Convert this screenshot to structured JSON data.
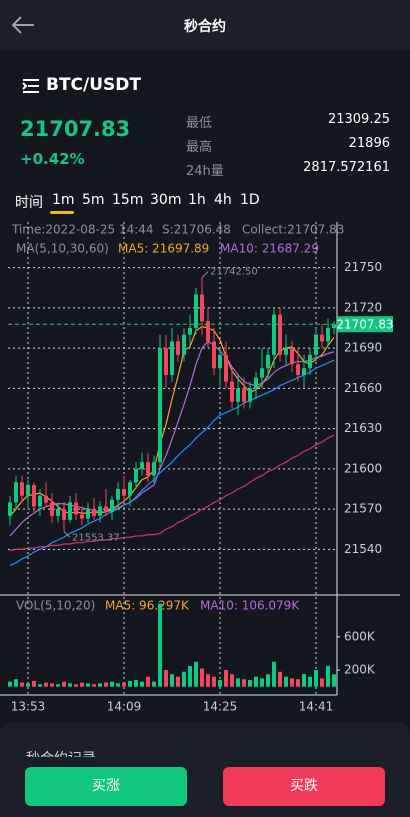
{
  "header": {
    "title": "秒合约"
  },
  "pair": "BTC/USDT",
  "price": "21707.83",
  "change": "+0.42%",
  "stats": [
    {
      "label": "最低",
      "value": "21309.25"
    },
    {
      "label": "最高",
      "value": "21896"
    },
    {
      "label": "24h量",
      "value": "2817.572161"
    }
  ],
  "intervals": [
    "时间",
    "1m",
    "5m",
    "15m",
    "30m",
    "1h",
    "4h",
    "1D"
  ],
  "active_interval": 1,
  "chart_data": {
    "type": "candlestick",
    "info": [
      "Time:2022-08-25 14:44",
      "S:21706.48",
      "Collect:21707.83"
    ],
    "ma_title": "MA(5,10,30,60)",
    "categories": [
      null,
      null,
      null,
      "13:53",
      null,
      null,
      null,
      null,
      null,
      null,
      null,
      null,
      null,
      null,
      null,
      null,
      null,
      null,
      null,
      "14:09",
      null,
      null,
      null,
      null,
      null,
      null,
      null,
      null,
      null,
      null,
      null,
      null,
      null,
      null,
      null,
      "14:25",
      null,
      null,
      null,
      null,
      null,
      null,
      null,
      null,
      null,
      null,
      null,
      null,
      null,
      null,
      null,
      "14:41",
      null,
      null,
      null
    ],
    "ohlc": [
      [
        21565,
        21580,
        21558,
        21575
      ],
      [
        21575,
        21595,
        21570,
        21590
      ],
      [
        21590,
        21595,
        21575,
        21580
      ],
      [
        21580,
        21592,
        21570,
        21588
      ],
      [
        21588,
        21590,
        21568,
        21572
      ],
      [
        21572,
        21585,
        21565,
        21580
      ],
      [
        21580,
        21590,
        21572,
        21575
      ],
      [
        21575,
        21582,
        21560,
        21565
      ],
      [
        21565,
        21575,
        21560,
        21570
      ],
      [
        21570,
        21575,
        21553.37,
        21562
      ],
      [
        21562,
        21580,
        21560,
        21575
      ],
      [
        21575,
        21582,
        21562,
        21566
      ],
      [
        21566,
        21572,
        21558,
        21563
      ],
      [
        21563,
        21575,
        21560,
        21570
      ],
      [
        21570,
        21578,
        21562,
        21565
      ],
      [
        21565,
        21576,
        21560,
        21572
      ],
      [
        21572,
        21585,
        21565,
        21568
      ],
      [
        21568,
        21580,
        21562,
        21577
      ],
      [
        21577,
        21590,
        21570,
        21585
      ],
      [
        21585,
        21595,
        21575,
        21580
      ],
      [
        21580,
        21592,
        21572,
        21590
      ],
      [
        21590,
        21605,
        21585,
        21600
      ],
      [
        21600,
        21612,
        21595,
        21605
      ],
      [
        21605,
        21612,
        21590,
        21595
      ],
      [
        21595,
        21610,
        21590,
        21605
      ],
      [
        21605,
        21700,
        21600,
        21690
      ],
      [
        21690,
        21700,
        21660,
        21670
      ],
      [
        21670,
        21705,
        21665,
        21695
      ],
      [
        21695,
        21700,
        21680,
        21685
      ],
      [
        21685,
        21705,
        21680,
        21700
      ],
      [
        21700,
        21715,
        21690,
        21705
      ],
      [
        21705,
        21735,
        21700,
        21730
      ],
      [
        21730,
        21742.5,
        21700,
        21710
      ],
      [
        21710,
        21720,
        21690,
        21695
      ],
      [
        21695,
        21705,
        21670,
        21675
      ],
      [
        21675,
        21690,
        21660,
        21685
      ],
      [
        21685,
        21695,
        21660,
        21665
      ],
      [
        21665,
        21675,
        21645,
        21650
      ],
      [
        21650,
        21670,
        21640,
        21660
      ],
      [
        21660,
        21668,
        21645,
        21650
      ],
      [
        21650,
        21665,
        21645,
        21660
      ],
      [
        21660,
        21672,
        21652,
        21668
      ],
      [
        21668,
        21690,
        21660,
        21675
      ],
      [
        21675,
        21690,
        21668,
        21685
      ],
      [
        21685,
        21720,
        21675,
        21715
      ],
      [
        21715,
        21720,
        21680,
        21685
      ],
      [
        21685,
        21700,
        21678,
        21690
      ],
      [
        21690,
        21695,
        21672,
        21678
      ],
      [
        21678,
        21690,
        21665,
        21670
      ],
      [
        21670,
        21685,
        21660,
        21675
      ],
      [
        21675,
        21690,
        21670,
        21685
      ],
      [
        21685,
        21705,
        21680,
        21700
      ],
      [
        21700,
        21708,
        21690,
        21695
      ],
      [
        21695,
        21712,
        21692,
        21705
      ],
      [
        21705,
        21710,
        21700,
        21707.83
      ]
    ],
    "up_color": "#0ecb81",
    "down_color": "#f6465d",
    "series": [
      {
        "name": "MA5: 21697.89",
        "color": "#f5a623",
        "values": [
          21565,
          21570,
          21576,
          21580,
          21581,
          21582,
          21579,
          21576,
          21572,
          21568,
          21567,
          21568,
          21567,
          21567,
          21568,
          21567,
          21568,
          21570,
          21573,
          21576,
          21580,
          21586,
          21592,
          21594,
          21599,
          21619,
          21633,
          21652,
          21669,
          21688,
          21691,
          21703,
          21706,
          21705,
          21703,
          21696,
          21684,
          21673,
          21667,
          21662,
          21657,
          21659,
          21663,
          21670,
          21681,
          21688,
          21690,
          21691,
          21686,
          21680,
          21678,
          21682,
          21685,
          21692,
          21697.89
        ]
      },
      {
        "name": "MA10: 21687.29",
        "color": "#b36bdc",
        "values": [
          21550,
          21555,
          21560,
          21564,
          21567,
          21570,
          21572,
          21573,
          21574,
          21574,
          21573,
          21572,
          21571,
          21570,
          21569,
          21568,
          21568,
          21569,
          21571,
          21573,
          21575,
          21578,
          21582,
          21585,
          21588,
          21600,
          21610,
          21622,
          21635,
          21648,
          21662,
          21678,
          21690,
          21695,
          21692,
          21688,
          21683,
          21676,
          21670,
          21665,
          21663,
          21662,
          21664,
          21667,
          21672,
          21675,
          21677,
          21679,
          21680,
          21680,
          21681,
          21683,
          21684,
          21686,
          21687.29
        ]
      },
      {
        "color": "#1e90ff",
        "values": [
          21528,
          21530,
          21533,
          21535,
          21538,
          21540,
          21542,
          21545,
          21547,
          21549,
          21552,
          21554,
          21556,
          21559,
          21561,
          21563,
          21566,
          21568,
          21570,
          21573,
          21575,
          21579,
          21584,
          21588,
          21592,
          21597,
          21601,
          21605,
          21610,
          21614,
          21618,
          21623,
          21627,
          21631,
          21636,
          21640,
          21642,
          21644,
          21646,
          21649,
          21651,
          21653,
          21655,
          21657,
          21659,
          21662,
          21664,
          21666,
          21668,
          21670,
          21672,
          21675,
          21677,
          21679,
          21681
        ]
      },
      {
        "color": "#d6336c",
        "values": [
          21539,
          21540,
          21540,
          21541,
          21541,
          21542,
          21542,
          21543,
          21543,
          21544,
          21544,
          21545,
          21545,
          21546,
          21546,
          21547,
          21547,
          21548,
          21548,
          21549,
          21549,
          21550,
          21550,
          21551,
          21551,
          21552,
          21555,
          21557,
          21560,
          21562,
          21565,
          21567,
          21570,
          21572,
          21575,
          21577,
          21580,
          21582,
          21585,
          21587,
          21590,
          21593,
          21595,
          21598,
          21600,
          21603,
          21605,
          21608,
          21610,
          21613,
          21615,
          21618,
          21620,
          21623,
          21625
        ]
      }
    ],
    "ylim": [
      21506,
      21784
    ],
    "yticks": [
      21540,
      21570,
      21600,
      21630,
      21660,
      21690,
      21720,
      21750
    ],
    "grid": true,
    "last_price": 21707.83,
    "annotations": [
      {
        "value": 21742.5,
        "label": "21742.50"
      },
      {
        "value": 21553.37,
        "label": "21553.37"
      }
    ],
    "volume": {
      "title": "VOL(5,10,20)",
      "ma_labels": [
        {
          "name": "MA5: 96.297K",
          "color": "#f5a623"
        },
        {
          "name": "MA10: 106.079K",
          "color": "#b36bdc"
        }
      ],
      "values": [
        60000,
        90000,
        50000,
        40000,
        70000,
        30000,
        50000,
        40000,
        30000,
        60000,
        40000,
        30000,
        50000,
        40000,
        30000,
        40000,
        50000,
        60000,
        40000,
        50000,
        70000,
        80000,
        60000,
        120000,
        60000,
        1000000,
        200000,
        150000,
        120000,
        180000,
        250000,
        300000,
        220000,
        150000,
        120000,
        80000,
        200000,
        150000,
        100000,
        90000,
        80000,
        120000,
        100000,
        150000,
        300000,
        180000,
        120000,
        100000,
        90000,
        150000,
        120000,
        200000,
        100000,
        250000,
        150000
      ],
      "ylim": [
        -100000,
        1080000
      ],
      "yticks": [
        {
          "value": 200000,
          "label": "200K"
        },
        {
          "value": 600000,
          "label": "600K"
        }
      ]
    }
  },
  "record_title": "秒合约记录",
  "buttons": {
    "buy": "买涨",
    "sell": "买跌"
  }
}
